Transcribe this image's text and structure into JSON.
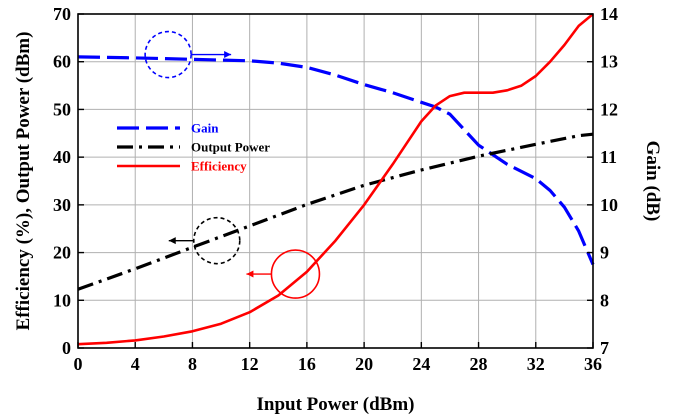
{
  "chart_data": {
    "type": "line",
    "xlabel": "Input Power (dBm)",
    "ylabel_left": "Efficiency (%), Output Power (dBm)",
    "ylabel_right": "Gain (dB)",
    "xlim": [
      0,
      36
    ],
    "ylim_left": [
      0,
      70
    ],
    "ylim_right": [
      7,
      14
    ],
    "x_ticks": [
      "0",
      "4",
      "8",
      "12",
      "16",
      "20",
      "24",
      "28",
      "32",
      "36"
    ],
    "y_left_ticks": [
      "0",
      "10",
      "20",
      "30",
      "40",
      "50",
      "60",
      "70"
    ],
    "y_right_ticks": [
      "7",
      "8",
      "9",
      "10",
      "11",
      "12",
      "13",
      "14"
    ],
    "grid": true,
    "legend_position": "center-left",
    "series": [
      {
        "name": "Gain",
        "axis": "right",
        "color": "#0000ff",
        "style": "dashed",
        "x": [
          0,
          4,
          8,
          12,
          14,
          16,
          18,
          20,
          22,
          24,
          25,
          26,
          28,
          30,
          32,
          33,
          34,
          35,
          36
        ],
        "y": [
          13.1,
          13.08,
          13.05,
          13.02,
          12.97,
          12.88,
          12.72,
          12.52,
          12.35,
          12.15,
          12.05,
          11.9,
          11.25,
          10.85,
          10.55,
          10.3,
          9.95,
          9.45,
          8.75
        ]
      },
      {
        "name": "Output Power",
        "axis": "left",
        "color": "#000000",
        "style": "dashdot",
        "x": [
          0,
          4,
          8,
          12,
          16,
          20,
          24,
          28,
          32,
          35,
          36
        ],
        "y": [
          12.3,
          16.6,
          21.1,
          25.6,
          30.1,
          34.1,
          37.3,
          40.2,
          42.7,
          44.5,
          44.8
        ]
      },
      {
        "name": "Efficiency",
        "axis": "left",
        "color": "#ff0000",
        "style": "solid",
        "x": [
          0,
          2,
          4,
          6,
          8,
          10,
          12,
          14,
          16,
          18,
          20,
          22,
          23,
          24,
          25,
          26,
          27,
          28,
          29,
          30,
          31,
          32,
          33,
          34,
          35,
          36
        ],
        "y": [
          0.8,
          1.1,
          1.6,
          2.4,
          3.5,
          5.1,
          7.5,
          11.0,
          16.0,
          22.5,
          30.0,
          38.5,
          43.0,
          47.5,
          50.8,
          52.8,
          53.5,
          53.5,
          53.5,
          54.0,
          55.0,
          57.0,
          60.0,
          63.5,
          67.5,
          70.0
        ]
      }
    ],
    "annotations": [
      {
        "target": "Gain",
        "arrow_direction": "right",
        "color": "#0000ff",
        "style": "dashed",
        "at_x": 6.3,
        "at_y_right": 13.15
      },
      {
        "target": "Output Power",
        "arrow_direction": "left",
        "color": "#000000",
        "style": "dashed",
        "at_x": 9.7,
        "at_y_left": 22.5
      },
      {
        "target": "Efficiency",
        "arrow_direction": "left",
        "color": "#ff0000",
        "style": "solid",
        "at_x": 15.2,
        "at_y_left": 15.5
      }
    ]
  }
}
